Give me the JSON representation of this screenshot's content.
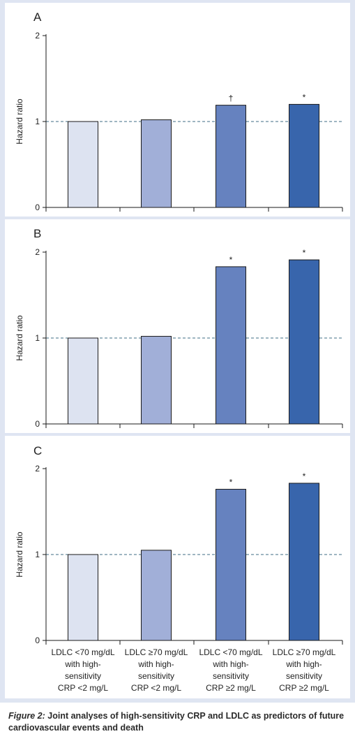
{
  "colors": {
    "background": "#dfe5f2",
    "plot_area": "#ffffff",
    "bars": [
      "#dde3f1",
      "#a1afd8",
      "#6682bf",
      "#3865ac"
    ],
    "reference_line": "#3f6e84"
  },
  "chart_data": [
    {
      "type": "bar",
      "panel_label": "A",
      "ylabel": "Hazard ratio",
      "ylim": [
        0,
        2
      ],
      "yticks": [
        "0",
        "1",
        "2"
      ],
      "reference_line": 1,
      "categories": [
        "LDLC <70 mg/dL with high-sensitivity CRP <2 mg/L",
        "LDLC ≥70 mg/dL with high-sensitivity CRP <2 mg/L",
        "LDLC <70 mg/dL with high-sensitivity CRP ≥2 mg/L",
        "LDLC ≥70 mg/dL with high-sensitivity CRP ≥2 mg/L"
      ],
      "values": [
        1.0,
        1.02,
        1.19,
        1.2
      ],
      "markers": [
        "",
        "",
        "†",
        "*"
      ]
    },
    {
      "type": "bar",
      "panel_label": "B",
      "ylabel": "Hazard ratio",
      "ylim": [
        0,
        2
      ],
      "yticks": [
        "0",
        "1",
        "2"
      ],
      "reference_line": 1,
      "categories": [
        "LDLC <70 mg/dL with high-sensitivity CRP <2 mg/L",
        "LDLC ≥70 mg/dL with high-sensitivity CRP <2 mg/L",
        "LDLC <70 mg/dL with high-sensitivity CRP ≥2 mg/L",
        "LDLC ≥70 mg/dL with high-sensitivity CRP ≥2 mg/L"
      ],
      "values": [
        1.0,
        1.02,
        1.83,
        1.91
      ],
      "markers": [
        "",
        "",
        "*",
        "*"
      ]
    },
    {
      "type": "bar",
      "panel_label": "C",
      "ylabel": "Hazard ratio",
      "ylim": [
        0,
        2
      ],
      "yticks": [
        "0",
        "1",
        "2"
      ],
      "reference_line": 1,
      "categories": [
        "LDLC <70 mg/dL with high-sensitivity CRP <2 mg/L",
        "LDLC ≥70 mg/dL with high-sensitivity CRP <2 mg/L",
        "LDLC <70 mg/dL with high-sensitivity CRP ≥2 mg/L",
        "LDLC ≥70 mg/dL with high-sensitivity CRP ≥2 mg/L"
      ],
      "category_label_lines": [
        [
          "LDLC <70 mg/dL",
          "with high-",
          "sensitivity",
          "CRP <2 mg/L"
        ],
        [
          "LDLC ≥70 mg/dL",
          "with high-",
          "sensitivity",
          "CRP <2 mg/L"
        ],
        [
          "LDLC <70 mg/dL",
          "with high-",
          "sensitivity",
          "CRP ≥2 mg/L"
        ],
        [
          "LDLC ≥70 mg/dL",
          "with high-",
          "sensitivity",
          "CRP ≥2 mg/L"
        ]
      ],
      "values": [
        1.0,
        1.05,
        1.76,
        1.83
      ],
      "markers": [
        "",
        "",
        "*",
        "*"
      ]
    }
  ],
  "caption": {
    "label": "Figure 2:",
    "text": " Joint analyses of high-sensitivity CRP and LDLC as predictors of future cardiovascular events and death"
  }
}
